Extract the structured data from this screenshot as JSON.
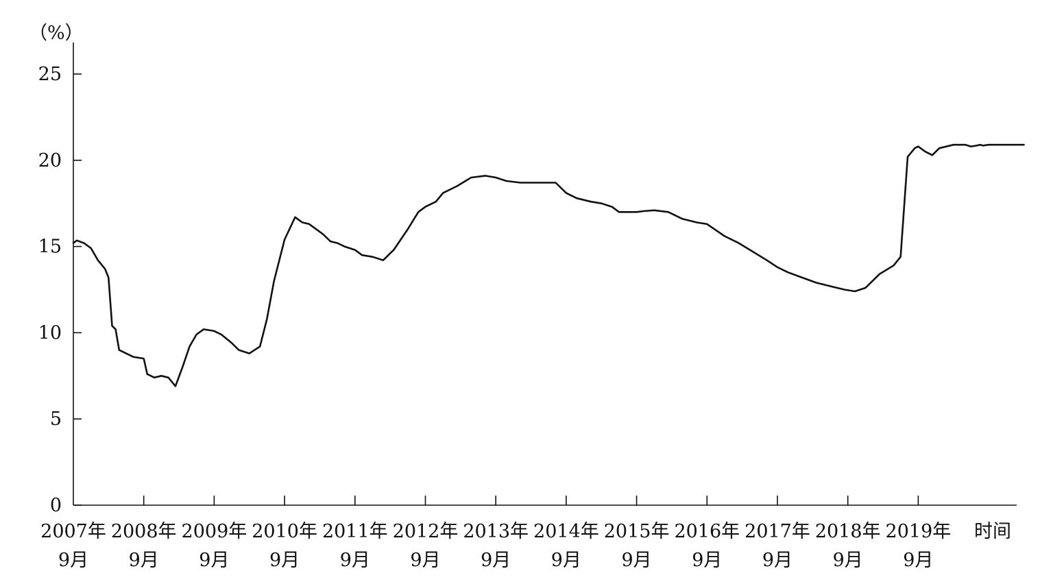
{
  "chart_data": {
    "type": "line",
    "ylabel": "（%）",
    "xlabel": "时间",
    "ylim": [
      0,
      25
    ],
    "yticks": [
      "0",
      "5",
      "10",
      "15",
      "20",
      "25"
    ],
    "grid": false,
    "legend": "none",
    "line_color": "#111111",
    "categories": [
      {
        "year": "2007年",
        "month": "9月"
      },
      {
        "year": "2008年",
        "month": "9月"
      },
      {
        "year": "2009年",
        "month": "9月"
      },
      {
        "year": "2010年",
        "month": "9月"
      },
      {
        "year": "2011年",
        "month": "9月"
      },
      {
        "year": "2012年",
        "month": "9月"
      },
      {
        "year": "2013年",
        "month": "9月"
      },
      {
        "year": "2014年",
        "month": "9月"
      },
      {
        "year": "2015年",
        "month": "9月"
      },
      {
        "year": "2016年",
        "month": "9月"
      },
      {
        "year": "2017年",
        "month": "9月"
      },
      {
        "year": "2018年",
        "month": "9月"
      },
      {
        "year": "2019年",
        "month": "9月"
      }
    ],
    "series": [
      {
        "x": [
          2007.75,
          2007.8,
          2007.9,
          2008.0,
          2008.1,
          2008.2,
          2008.25,
          2008.3,
          2008.35,
          2008.4,
          2008.5,
          2008.6,
          2008.75,
          2008.8,
          2008.9,
          2009.0,
          2009.1,
          2009.2,
          2009.3,
          2009.4,
          2009.5,
          2009.6,
          2009.75,
          2009.85,
          2010.0,
          2010.1,
          2010.25,
          2010.4,
          2010.5,
          2010.6,
          2010.75,
          2010.9,
          2011.0,
          2011.1,
          2011.2,
          2011.3,
          2011.4,
          2011.5,
          2011.6,
          2011.75,
          2011.85,
          2012.0,
          2012.15,
          2012.3,
          2012.5,
          2012.65,
          2012.75,
          2012.9,
          2013.0,
          2013.2,
          2013.4,
          2013.6,
          2013.75,
          2013.9,
          2014.1,
          2014.3,
          2014.5,
          2014.6,
          2014.75,
          2014.9,
          2015.1,
          2015.25,
          2015.4,
          2015.5,
          2015.75,
          2015.85,
          2016.0,
          2016.2,
          2016.4,
          2016.6,
          2016.75,
          2017.0,
          2017.2,
          2017.4,
          2017.6,
          2017.75,
          2017.9,
          2018.1,
          2018.3,
          2018.5,
          2018.7,
          2018.85,
          2019.0,
          2019.2,
          2019.4,
          2019.5,
          2019.6,
          2019.7,
          2019.75,
          2019.85,
          2019.95,
          2020.05,
          2020.25,
          2020.42,
          2020.5,
          2020.58,
          2020.63,
          2020.67,
          2020.75,
          2020.8,
          2020.85,
          2020.95,
          2021.05,
          2021.15,
          2021.25
        ],
        "y": [
          15.2,
          15.35,
          15.2,
          14.9,
          14.2,
          13.7,
          13.2,
          10.4,
          10.2,
          9.0,
          8.8,
          8.6,
          8.5,
          7.6,
          7.4,
          7.5,
          7.4,
          6.9,
          8.0,
          9.2,
          9.9,
          10.2,
          10.1,
          9.9,
          9.4,
          9.0,
          8.8,
          9.2,
          10.8,
          13.0,
          15.4,
          16.7,
          16.4,
          16.3,
          16.0,
          15.7,
          15.3,
          15.2,
          15.0,
          14.8,
          14.5,
          14.4,
          14.2,
          14.8,
          16.0,
          17.0,
          17.3,
          17.6,
          18.1,
          18.5,
          19.0,
          19.1,
          19.0,
          18.8,
          18.7,
          18.7,
          18.7,
          18.7,
          18.1,
          17.8,
          17.6,
          17.5,
          17.3,
          17.0,
          17.0,
          17.05,
          17.1,
          17.0,
          16.6,
          16.4,
          16.3,
          15.6,
          15.2,
          14.7,
          14.2,
          13.8,
          13.5,
          13.2,
          12.9,
          12.7,
          12.5,
          12.4,
          12.6,
          13.4,
          13.9,
          14.4,
          20.2,
          20.7,
          20.8,
          20.5,
          20.3,
          20.7,
          20.9,
          20.9,
          20.8,
          20.85,
          20.9,
          20.85,
          20.9,
          20.9,
          20.9,
          20.9,
          20.9,
          20.9,
          20.9
        ]
      }
    ],
    "xlim": [
      2007.75,
      2021.15
    ]
  }
}
